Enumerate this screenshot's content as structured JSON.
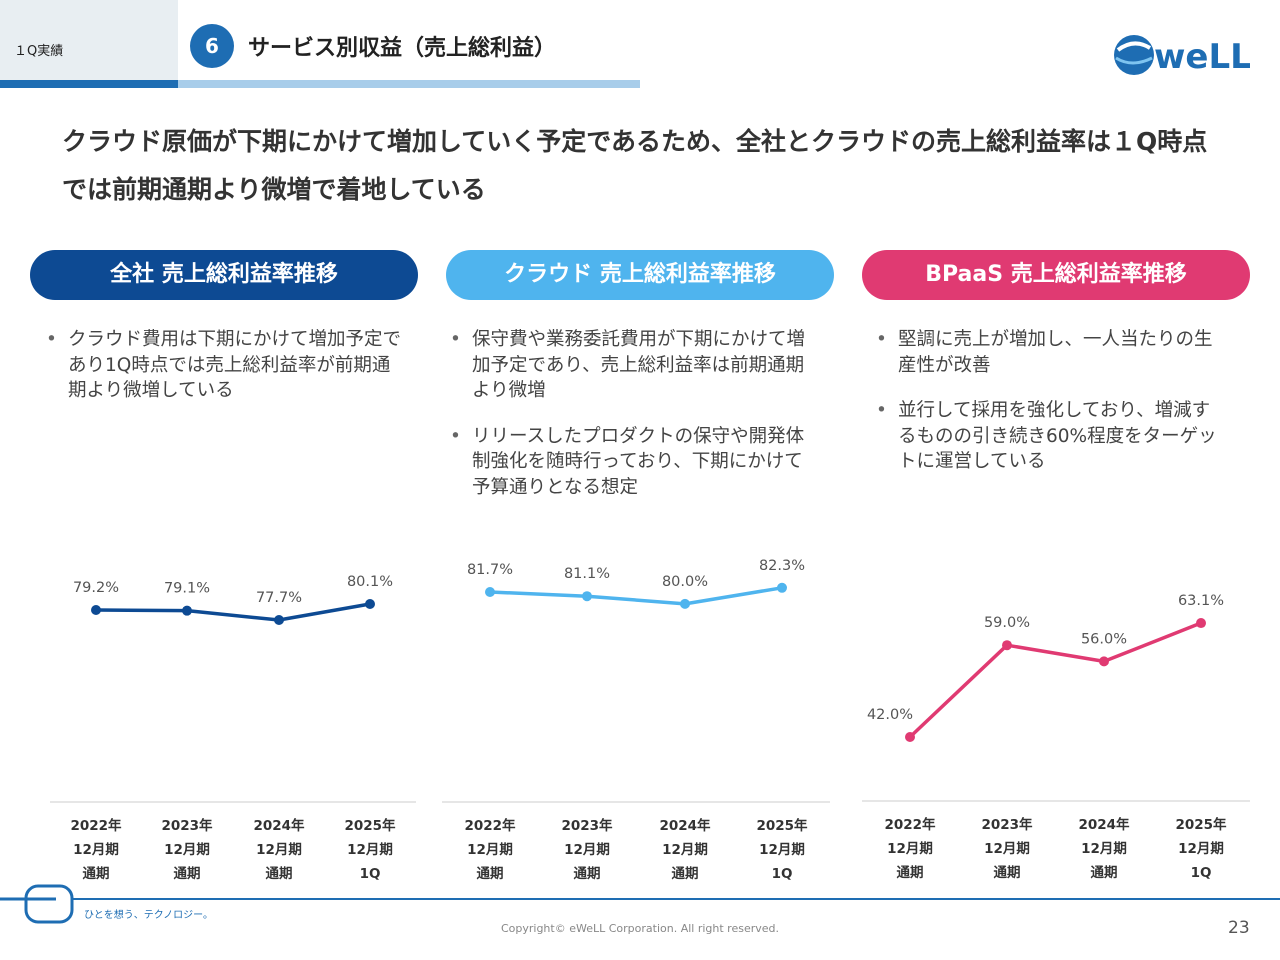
{
  "header": {
    "tab_label": "１Q実績",
    "section_number": "6",
    "section_title": "サービス別収益（売上総利益）",
    "logo_text": "weLL"
  },
  "headline": "クラウド原価が下期にかけて増加していく予定であるため、全社とクラウドの売上総利益率は１Q時点では前期通期より微増で着地している",
  "panels": [
    {
      "title": "全社 売上総利益率推移",
      "bullets": [
        "クラウド費用は下期にかけて増加予定であり1Q時点では売上総利益率が前期通期より微増している"
      ]
    },
    {
      "title": "クラウド 売上総利益率推移",
      "bullets": [
        "保守費や業務委託費用が下期にかけて増加予定であり、売上総利益率は前期通期より微増",
        "リリースしたプロダクトの保守や開発体制強化を随時行っており、下期にかけて予算通りとなる想定"
      ]
    },
    {
      "title": "BPaaS 売上総利益率推移",
      "bullets": [
        "堅調に売上が増加し、一人当たりの生産性が改善",
        "並行して採用を強化しており、増減するものの引き続き60%程度をターゲットに運営している"
      ]
    }
  ],
  "chart_data": [
    {
      "type": "line",
      "categories": [
        [
          "2022年",
          "12月期",
          "通期"
        ],
        [
          "2023年",
          "12月期",
          "通期"
        ],
        [
          "2024年",
          "12月期",
          "通期"
        ],
        [
          "2025年",
          "12月期",
          "1Q"
        ]
      ],
      "series": [
        {
          "values": [
            79.2,
            79.1,
            77.7,
            80.1
          ],
          "labels": [
            "79.2%",
            "79.1%",
            "77.7%",
            "80.1%"
          ],
          "color": "#0d4a93"
        }
      ]
    },
    {
      "type": "line",
      "categories": [
        [
          "2022年",
          "12月期",
          "通期"
        ],
        [
          "2023年",
          "12月期",
          "通期"
        ],
        [
          "2024年",
          "12月期",
          "通期"
        ],
        [
          "2025年",
          "12月期",
          "1Q"
        ]
      ],
      "series": [
        {
          "values": [
            81.7,
            81.1,
            80.0,
            82.3
          ],
          "labels": [
            "81.7%",
            "81.1%",
            "80.0%",
            "82.3%"
          ],
          "color": "#4fb4ee"
        }
      ]
    },
    {
      "type": "line",
      "categories": [
        [
          "2022年",
          "12月期",
          "通期"
        ],
        [
          "2023年",
          "12月期",
          "通期"
        ],
        [
          "2024年",
          "12月期",
          "通期"
        ],
        [
          "2025年",
          "12月期",
          "1Q"
        ]
      ],
      "series": [
        {
          "values": [
            42.0,
            59.0,
            56.0,
            63.1
          ],
          "labels": [
            "42.0%",
            "59.0%",
            "56.0%",
            "63.1%"
          ],
          "color": "#e03a72"
        }
      ]
    }
  ],
  "colors": {
    "brand_blue": "#1e6db3",
    "panel1": "#0d4a93",
    "panel2": "#4fb4ee",
    "panel3": "#e03a72"
  },
  "footer": {
    "tagline": "ひとを想う、テクノロジー。",
    "copyright": "Copyright© eWeLL Corporation. All right reserved.",
    "page_number": "23"
  }
}
